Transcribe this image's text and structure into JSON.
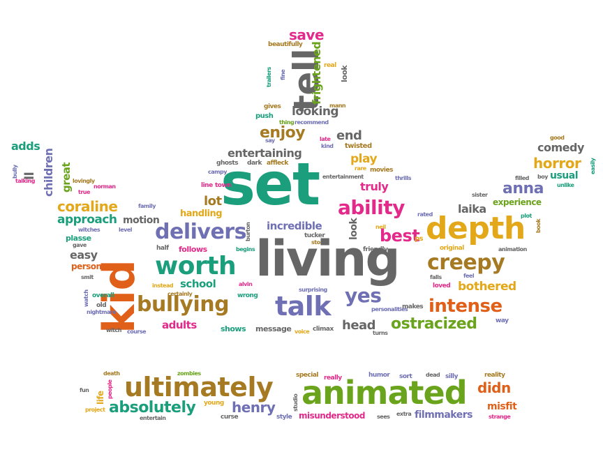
{
  "palette": {
    "teal": "#1a9e7c",
    "orange": "#e0601a",
    "purple": "#6f6fb4",
    "pink": "#e3298a",
    "olive": "#6aa31c",
    "gold": "#e3a81a",
    "brown": "#a67a22",
    "gray": "#666666"
  },
  "words": [
    {
      "text": "save",
      "color": "pink"
    },
    {
      "text": "beautifully",
      "color": "brown"
    },
    {
      "text": "real",
      "color": "gold"
    },
    {
      "text": "tell",
      "color": "gray"
    },
    {
      "text": "frightened",
      "color": "olive"
    },
    {
      "text": "trailers",
      "color": "teal"
    },
    {
      "text": "fine",
      "color": "purple"
    },
    {
      "text": "look",
      "color": "gray"
    },
    {
      "text": "gives",
      "color": "brown"
    },
    {
      "text": "push",
      "color": "teal"
    },
    {
      "text": "thing",
      "color": "olive"
    },
    {
      "text": "recommend",
      "color": "purple"
    },
    {
      "text": "mann",
      "color": "brown"
    },
    {
      "text": "looking",
      "color": "gray"
    },
    {
      "text": "enjoy",
      "color": "brown"
    },
    {
      "text": "say",
      "color": "purple"
    },
    {
      "text": "late",
      "color": "pink"
    },
    {
      "text": "kind",
      "color": "purple"
    },
    {
      "text": "end",
      "color": "gray"
    },
    {
      "text": "twisted",
      "color": "brown"
    },
    {
      "text": "entertaining",
      "color": "gray"
    },
    {
      "text": "ghosts",
      "color": "gray"
    },
    {
      "text": "dark",
      "color": "gray"
    },
    {
      "text": "affleck",
      "color": "brown"
    },
    {
      "text": "play",
      "color": "gold"
    },
    {
      "text": "rare",
      "color": "gold"
    },
    {
      "text": "movies",
      "color": "brown"
    },
    {
      "text": "campy",
      "color": "purple"
    },
    {
      "text": "set",
      "color": "teal"
    },
    {
      "text": "entertainment",
      "color": "gray"
    },
    {
      "text": "line",
      "color": "pink"
    },
    {
      "text": "town",
      "color": "pink"
    },
    {
      "text": "truly",
      "color": "pink"
    },
    {
      "text": "lot",
      "color": "brown"
    },
    {
      "text": "handling",
      "color": "gold"
    },
    {
      "text": "ability",
      "color": "pink"
    },
    {
      "text": "incredible",
      "color": "purple"
    },
    {
      "text": "delivers",
      "color": "purple"
    },
    {
      "text": "burton",
      "color": "gray"
    },
    {
      "text": "neil",
      "color": "gold"
    },
    {
      "text": "tucker",
      "color": "gray"
    },
    {
      "text": "story",
      "color": "brown"
    },
    {
      "text": "best",
      "color": "pink"
    },
    {
      "text": "ps",
      "color": "gold"
    },
    {
      "text": "half",
      "color": "gray"
    },
    {
      "text": "follows",
      "color": "pink"
    },
    {
      "text": "begins",
      "color": "teal"
    },
    {
      "text": "living",
      "color": "gray"
    },
    {
      "text": "friendly",
      "color": "gray"
    },
    {
      "text": "worth",
      "color": "teal"
    },
    {
      "text": "school",
      "color": "teal"
    },
    {
      "text": "alvin",
      "color": "pink"
    },
    {
      "text": "wrong",
      "color": "teal"
    },
    {
      "text": "instead",
      "color": "gold"
    },
    {
      "text": "certainly",
      "color": "brown"
    },
    {
      "text": "surprising",
      "color": "purple"
    },
    {
      "text": "yes",
      "color": "purple"
    },
    {
      "text": "personalities",
      "color": "purple"
    },
    {
      "text": "makes",
      "color": "gray"
    },
    {
      "text": "bullying",
      "color": "brown"
    },
    {
      "text": "talk",
      "color": "purple"
    },
    {
      "text": "adults",
      "color": "pink"
    },
    {
      "text": "shows",
      "color": "teal"
    },
    {
      "text": "message",
      "color": "gray"
    },
    {
      "text": "voice",
      "color": "gold"
    },
    {
      "text": "climax",
      "color": "gray"
    },
    {
      "text": "head",
      "color": "gray"
    },
    {
      "text": "turns",
      "color": "gray"
    },
    {
      "text": "kid",
      "color": "orange"
    },
    {
      "text": "adds",
      "color": "teal"
    },
    {
      "text": "ll",
      "color": "gray"
    },
    {
      "text": "children",
      "color": "purple"
    },
    {
      "text": "great",
      "color": "olive"
    },
    {
      "text": "lovingly",
      "color": "brown"
    },
    {
      "text": "bully",
      "color": "purple"
    },
    {
      "text": "talking",
      "color": "pink"
    },
    {
      "text": "true",
      "color": "pink"
    },
    {
      "text": "norman",
      "color": "pink"
    },
    {
      "text": "coraline",
      "color": "gold"
    },
    {
      "text": "family",
      "color": "purple"
    },
    {
      "text": "approach",
      "color": "teal"
    },
    {
      "text": "motion",
      "color": "gray"
    },
    {
      "text": "witches",
      "color": "purple"
    },
    {
      "text": "level",
      "color": "purple"
    },
    {
      "text": "plasse",
      "color": "teal"
    },
    {
      "text": "gave",
      "color": "gray"
    },
    {
      "text": "easy",
      "color": "gray"
    },
    {
      "text": "person",
      "color": "orange"
    },
    {
      "text": "smit",
      "color": "gray"
    },
    {
      "text": "watch",
      "color": "purple"
    },
    {
      "text": "overall",
      "color": "teal"
    },
    {
      "text": "old",
      "color": "gray"
    },
    {
      "text": "nightmare",
      "color": "purple"
    },
    {
      "text": "witch",
      "color": "gray"
    },
    {
      "text": "course",
      "color": "purple"
    },
    {
      "text": "good",
      "color": "brown"
    },
    {
      "text": "comedy",
      "color": "gray"
    },
    {
      "text": "horror",
      "color": "gold"
    },
    {
      "text": "easily",
      "color": "teal"
    },
    {
      "text": "boy",
      "color": "gray"
    },
    {
      "text": "usual",
      "color": "teal"
    },
    {
      "text": "filled",
      "color": "gray"
    },
    {
      "text": "unlike",
      "color": "teal"
    },
    {
      "text": "anna",
      "color": "purple"
    },
    {
      "text": "sister",
      "color": "gray"
    },
    {
      "text": "laika",
      "color": "gray"
    },
    {
      "text": "experience",
      "color": "olive"
    },
    {
      "text": "rated",
      "color": "purple"
    },
    {
      "text": "plot",
      "color": "teal"
    },
    {
      "text": "depth",
      "color": "gold"
    },
    {
      "text": "book",
      "color": "brown"
    },
    {
      "text": "original",
      "color": "gold"
    },
    {
      "text": "animation",
      "color": "gray"
    },
    {
      "text": "creepy",
      "color": "brown"
    },
    {
      "text": "falls",
      "color": "gray"
    },
    {
      "text": "loved",
      "color": "pink"
    },
    {
      "text": "feel",
      "color": "purple"
    },
    {
      "text": "bothered",
      "color": "gold"
    },
    {
      "text": "intense",
      "color": "orange"
    },
    {
      "text": "ostracized",
      "color": "olive"
    },
    {
      "text": "way",
      "color": "purple"
    },
    {
      "text": "thrills",
      "color": "purple"
    },
    {
      "text": "death",
      "color": "brown"
    },
    {
      "text": "zombies",
      "color": "olive"
    },
    {
      "text": "special",
      "color": "brown"
    },
    {
      "text": "really",
      "color": "pink"
    },
    {
      "text": "humor",
      "color": "purple"
    },
    {
      "text": "sort",
      "color": "purple"
    },
    {
      "text": "dead",
      "color": "gray"
    },
    {
      "text": "silly",
      "color": "purple"
    },
    {
      "text": "reality",
      "color": "brown"
    },
    {
      "text": "ultimately",
      "color": "brown"
    },
    {
      "text": "animated",
      "color": "olive"
    },
    {
      "text": "didn",
      "color": "orange"
    },
    {
      "text": "fun",
      "color": "gray"
    },
    {
      "text": "life",
      "color": "gold"
    },
    {
      "text": "people",
      "color": "pink"
    },
    {
      "text": "project",
      "color": "gold"
    },
    {
      "text": "absolutely",
      "color": "teal"
    },
    {
      "text": "young",
      "color": "gold"
    },
    {
      "text": "henry",
      "color": "purple"
    },
    {
      "text": "studio",
      "color": "gray"
    },
    {
      "text": "misfit",
      "color": "orange"
    },
    {
      "text": "entertain",
      "color": "gray"
    },
    {
      "text": "curse",
      "color": "gray"
    },
    {
      "text": "style",
      "color": "purple"
    },
    {
      "text": "misunderstood",
      "color": "pink"
    },
    {
      "text": "sees",
      "color": "gray"
    },
    {
      "text": "extra",
      "color": "gray"
    },
    {
      "text": "filmmakers",
      "color": "purple"
    },
    {
      "text": "strange",
      "color": "pink"
    }
  ]
}
